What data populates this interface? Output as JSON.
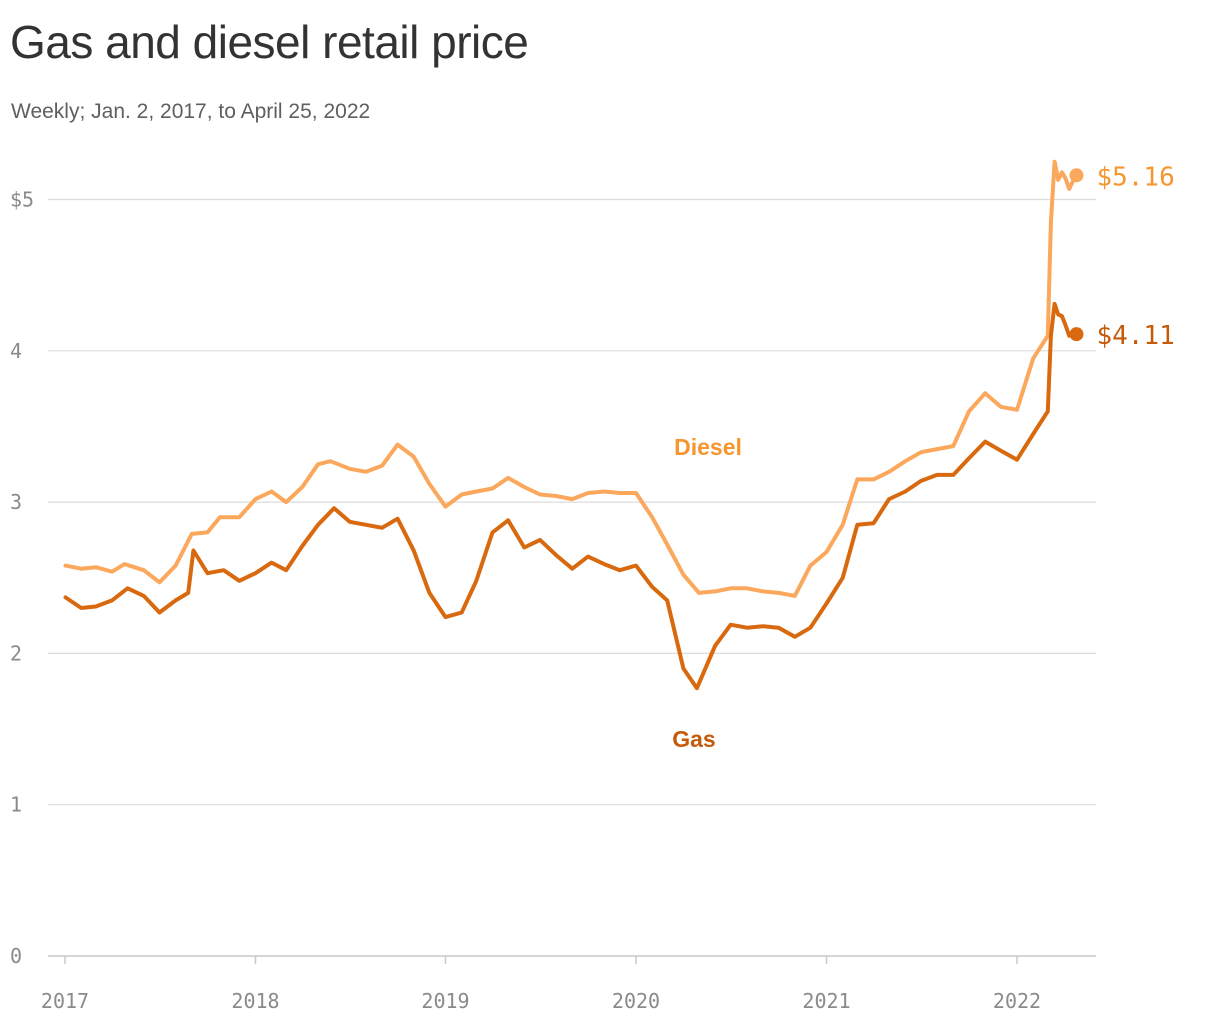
{
  "title": "Gas and diesel retail price",
  "subtitle": "Weekly; Jan. 2, 2017, to April 25, 2022",
  "colors": {
    "diesel": "#fba75c",
    "gas": "#d9690f",
    "diesel_label": "#f7952f",
    "gas_label": "#c55a0a",
    "grid": "#dcdcdc",
    "axis": "#c8c8c8"
  },
  "chart_data": {
    "type": "line",
    "title": "Gas and diesel retail price",
    "subtitle": "Weekly; Jan. 2, 2017, to April 25, 2022",
    "xlabel": "",
    "ylabel": "",
    "ylim": [
      0,
      5.3
    ],
    "xlim": [
      "2017-01-02",
      "2022-04-25"
    ],
    "x_ticks": [
      "2017",
      "2018",
      "2019",
      "2020",
      "2021",
      "2022"
    ],
    "y_ticks": [
      "0",
      "1",
      "2",
      "3",
      "4",
      "$5"
    ],
    "grid": true,
    "series": [
      {
        "name": "Diesel",
        "end_label": "$5.16",
        "points": [
          [
            "2017-01-02",
            2.58
          ],
          [
            "2017-02-01",
            2.56
          ],
          [
            "2017-03-01",
            2.57
          ],
          [
            "2017-04-01",
            2.54
          ],
          [
            "2017-04-25",
            2.59
          ],
          [
            "2017-06-01",
            2.55
          ],
          [
            "2017-07-01",
            2.47
          ],
          [
            "2017-08-01",
            2.58
          ],
          [
            "2017-09-01",
            2.79
          ],
          [
            "2017-10-01",
            2.8
          ],
          [
            "2017-10-25",
            2.9
          ],
          [
            "2017-12-01",
            2.9
          ],
          [
            "2018-01-01",
            3.02
          ],
          [
            "2018-02-01",
            3.07
          ],
          [
            "2018-03-01",
            3.0
          ],
          [
            "2018-04-01",
            3.1
          ],
          [
            "2018-05-01",
            3.25
          ],
          [
            "2018-05-25",
            3.27
          ],
          [
            "2018-07-01",
            3.22
          ],
          [
            "2018-08-01",
            3.2
          ],
          [
            "2018-09-01",
            3.24
          ],
          [
            "2018-10-01",
            3.38
          ],
          [
            "2018-11-01",
            3.3
          ],
          [
            "2018-12-01",
            3.12
          ],
          [
            "2019-01-01",
            2.97
          ],
          [
            "2019-02-01",
            3.05
          ],
          [
            "2019-03-01",
            3.07
          ],
          [
            "2019-04-01",
            3.09
          ],
          [
            "2019-05-01",
            3.16
          ],
          [
            "2019-06-01",
            3.1
          ],
          [
            "2019-07-01",
            3.05
          ],
          [
            "2019-08-01",
            3.04
          ],
          [
            "2019-09-01",
            3.02
          ],
          [
            "2019-10-01",
            3.06
          ],
          [
            "2019-11-01",
            3.07
          ],
          [
            "2019-12-01",
            3.06
          ],
          [
            "2020-01-01",
            3.06
          ],
          [
            "2020-02-01",
            2.9
          ],
          [
            "2020-03-01",
            2.72
          ],
          [
            "2020-04-01",
            2.52
          ],
          [
            "2020-05-01",
            2.4
          ],
          [
            "2020-06-01",
            2.41
          ],
          [
            "2020-07-01",
            2.43
          ],
          [
            "2020-08-01",
            2.43
          ],
          [
            "2020-09-01",
            2.41
          ],
          [
            "2020-10-01",
            2.4
          ],
          [
            "2020-11-01",
            2.38
          ],
          [
            "2020-12-01",
            2.58
          ],
          [
            "2021-01-01",
            2.67
          ],
          [
            "2021-02-01",
            2.85
          ],
          [
            "2021-03-01",
            3.15
          ],
          [
            "2021-04-01",
            3.15
          ],
          [
            "2021-05-01",
            3.2
          ],
          [
            "2021-06-01",
            3.27
          ],
          [
            "2021-07-01",
            3.33
          ],
          [
            "2021-08-01",
            3.35
          ],
          [
            "2021-09-01",
            3.37
          ],
          [
            "2021-10-01",
            3.6
          ],
          [
            "2021-11-01",
            3.72
          ],
          [
            "2021-12-01",
            3.63
          ],
          [
            "2022-01-01",
            3.61
          ],
          [
            "2022-02-01",
            3.95
          ],
          [
            "2022-03-01",
            4.1
          ],
          [
            "2022-03-07",
            4.85
          ],
          [
            "2022-03-14",
            5.25
          ],
          [
            "2022-03-21",
            5.13
          ],
          [
            "2022-03-28",
            5.18
          ],
          [
            "2022-04-04",
            5.14
          ],
          [
            "2022-04-11",
            5.07
          ],
          [
            "2022-04-18",
            5.12
          ],
          [
            "2022-04-25",
            5.16
          ]
        ]
      },
      {
        "name": "Gas",
        "end_label": "$4.11",
        "points": [
          [
            "2017-01-02",
            2.37
          ],
          [
            "2017-02-01",
            2.3
          ],
          [
            "2017-03-01",
            2.31
          ],
          [
            "2017-04-01",
            2.35
          ],
          [
            "2017-05-01",
            2.43
          ],
          [
            "2017-06-01",
            2.38
          ],
          [
            "2017-07-01",
            2.27
          ],
          [
            "2017-08-01",
            2.35
          ],
          [
            "2017-08-25",
            2.4
          ],
          [
            "2017-09-04",
            2.68
          ],
          [
            "2017-10-01",
            2.53
          ],
          [
            "2017-11-01",
            2.55
          ],
          [
            "2017-12-01",
            2.48
          ],
          [
            "2018-01-01",
            2.53
          ],
          [
            "2018-02-01",
            2.6
          ],
          [
            "2018-03-01",
            2.55
          ],
          [
            "2018-04-01",
            2.71
          ],
          [
            "2018-05-01",
            2.85
          ],
          [
            "2018-06-01",
            2.96
          ],
          [
            "2018-07-01",
            2.87
          ],
          [
            "2018-08-01",
            2.85
          ],
          [
            "2018-09-01",
            2.83
          ],
          [
            "2018-10-01",
            2.89
          ],
          [
            "2018-11-01",
            2.68
          ],
          [
            "2018-12-01",
            2.4
          ],
          [
            "2019-01-01",
            2.24
          ],
          [
            "2019-02-01",
            2.27
          ],
          [
            "2019-03-01",
            2.48
          ],
          [
            "2019-04-01",
            2.8
          ],
          [
            "2019-05-01",
            2.88
          ],
          [
            "2019-06-01",
            2.7
          ],
          [
            "2019-07-01",
            2.75
          ],
          [
            "2019-08-01",
            2.65
          ],
          [
            "2019-09-01",
            2.56
          ],
          [
            "2019-10-01",
            2.64
          ],
          [
            "2019-11-01",
            2.59
          ],
          [
            "2019-12-01",
            2.55
          ],
          [
            "2020-01-01",
            2.58
          ],
          [
            "2020-02-01",
            2.44
          ],
          [
            "2020-03-01",
            2.35
          ],
          [
            "2020-04-01",
            1.9
          ],
          [
            "2020-04-27",
            1.77
          ],
          [
            "2020-06-01",
            2.05
          ],
          [
            "2020-07-01",
            2.19
          ],
          [
            "2020-08-01",
            2.17
          ],
          [
            "2020-09-01",
            2.18
          ],
          [
            "2020-10-01",
            2.17
          ],
          [
            "2020-11-01",
            2.11
          ],
          [
            "2020-12-01",
            2.17
          ],
          [
            "2021-01-01",
            2.33
          ],
          [
            "2021-02-01",
            2.5
          ],
          [
            "2021-03-01",
            2.85
          ],
          [
            "2021-04-01",
            2.86
          ],
          [
            "2021-05-01",
            3.02
          ],
          [
            "2021-06-01",
            3.07
          ],
          [
            "2021-07-01",
            3.14
          ],
          [
            "2021-08-01",
            3.18
          ],
          [
            "2021-09-01",
            3.18
          ],
          [
            "2021-10-01",
            3.29
          ],
          [
            "2021-11-01",
            3.4
          ],
          [
            "2021-12-01",
            3.34
          ],
          [
            "2022-01-01",
            3.28
          ],
          [
            "2022-02-01",
            3.45
          ],
          [
            "2022-03-01",
            3.6
          ],
          [
            "2022-03-07",
            4.1
          ],
          [
            "2022-03-14",
            4.31
          ],
          [
            "2022-03-21",
            4.24
          ],
          [
            "2022-03-28",
            4.23
          ],
          [
            "2022-04-04",
            4.17
          ],
          [
            "2022-04-11",
            4.1
          ],
          [
            "2022-04-18",
            4.11
          ],
          [
            "2022-04-25",
            4.11
          ]
        ]
      }
    ]
  }
}
